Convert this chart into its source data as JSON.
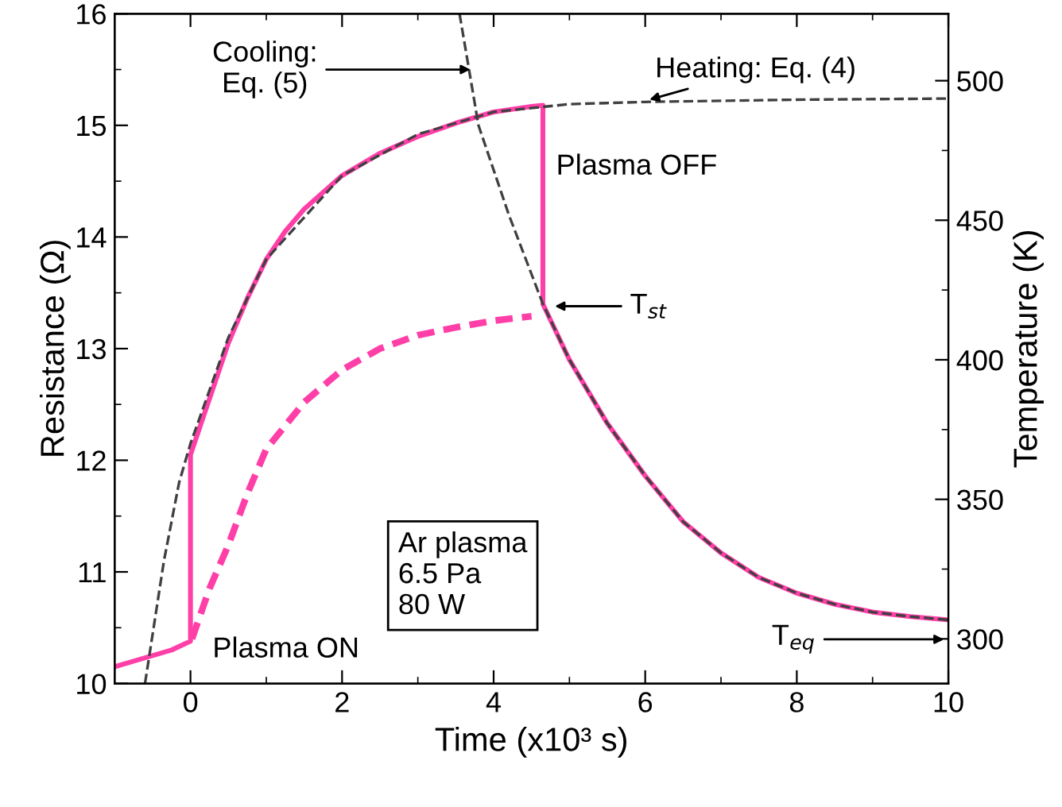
{
  "chart_data": {
    "type": "line",
    "xlabel": "Time (x10³ s)",
    "ylabel": "Resistance (Ω)",
    "y2label": "Temperature (K)",
    "xlim": [
      -1,
      10
    ],
    "xticks": [
      0,
      2,
      4,
      6,
      8,
      10
    ],
    "ylim": [
      10,
      16
    ],
    "yticks": [
      10,
      11,
      12,
      13,
      14,
      15,
      16
    ],
    "y2lim": [
      284,
      524
    ],
    "y2ticks": [
      300,
      350,
      400,
      450,
      500
    ],
    "grid": false,
    "marker": "none",
    "series": [
      {
        "color": "#ff3fa8",
        "line_style": "solid",
        "x": [
          -1,
          -0.75,
          -0.5,
          -0.25,
          0,
          0,
          0.25,
          0.5,
          0.75,
          1,
          1.25,
          1.5,
          2,
          2.5,
          3,
          3.5,
          4,
          4.5,
          4.65,
          4.65,
          5,
          5.5,
          6,
          6.5,
          7,
          7.5,
          8,
          8.5,
          9,
          9.5,
          10
        ],
        "values": [
          10.15,
          10.2,
          10.25,
          10.3,
          10.38,
          12.05,
          12.55,
          13.05,
          13.45,
          13.8,
          14.05,
          14.25,
          14.55,
          14.75,
          14.9,
          15.02,
          15.12,
          15.17,
          15.18,
          13.4,
          12.9,
          12.33,
          11.86,
          11.45,
          11.17,
          10.95,
          10.81,
          10.71,
          10.64,
          10.6,
          10.57
        ]
      },
      {
        "color": "#ff3fa8",
        "line_style": "dashed",
        "x": [
          0.02,
          0.25,
          0.5,
          0.75,
          1,
          1.5,
          2,
          2.5,
          3,
          3.5,
          4,
          4.5
        ],
        "values": [
          10.4,
          10.85,
          11.24,
          11.7,
          12.1,
          12.52,
          12.81,
          13.0,
          13.12,
          13.19,
          13.25,
          13.29
        ]
      },
      {
        "color": "#404040",
        "line_style": "dashed",
        "x": [
          -0.6,
          -0.35,
          -0.15,
          0,
          0.5,
          1,
          2,
          3,
          4,
          5,
          6,
          8,
          10
        ],
        "values": [
          10.0,
          11.1,
          11.8,
          12.15,
          13.1,
          13.8,
          14.55,
          14.92,
          15.12,
          15.19,
          15.21,
          15.23,
          15.24
        ]
      },
      {
        "color": "#404040",
        "line_style": "dashed",
        "x": [
          3.55,
          3.8,
          4.2,
          4.65,
          5,
          5.5,
          6,
          6.5,
          7,
          7.5,
          8,
          8.5,
          9,
          9.5,
          10
        ],
        "values": [
          16.0,
          15.0,
          14.2,
          13.4,
          12.9,
          12.33,
          11.86,
          11.45,
          11.17,
          10.95,
          10.81,
          10.71,
          10.64,
          10.6,
          10.57
        ]
      }
    ],
    "annotations": [
      {
        "text": "Cooling:\nEq. (5)",
        "x": 3.75,
        "y": 15.5
      },
      {
        "text": "Heating: Eq. (4)",
        "x": 6.0,
        "y": 15.22
      },
      {
        "text": "Plasma ON",
        "x": 0,
        "y": 10.38
      },
      {
        "text": "Plasma OFF",
        "x": 4.65,
        "y": 15.18
      },
      {
        "text": "T$_{st}$",
        "x": 4.75,
        "y": 13.38
      },
      "T$_{eq}$",
      "Ar plasma\n6.5 Pa\n80 W"
    ]
  }
}
